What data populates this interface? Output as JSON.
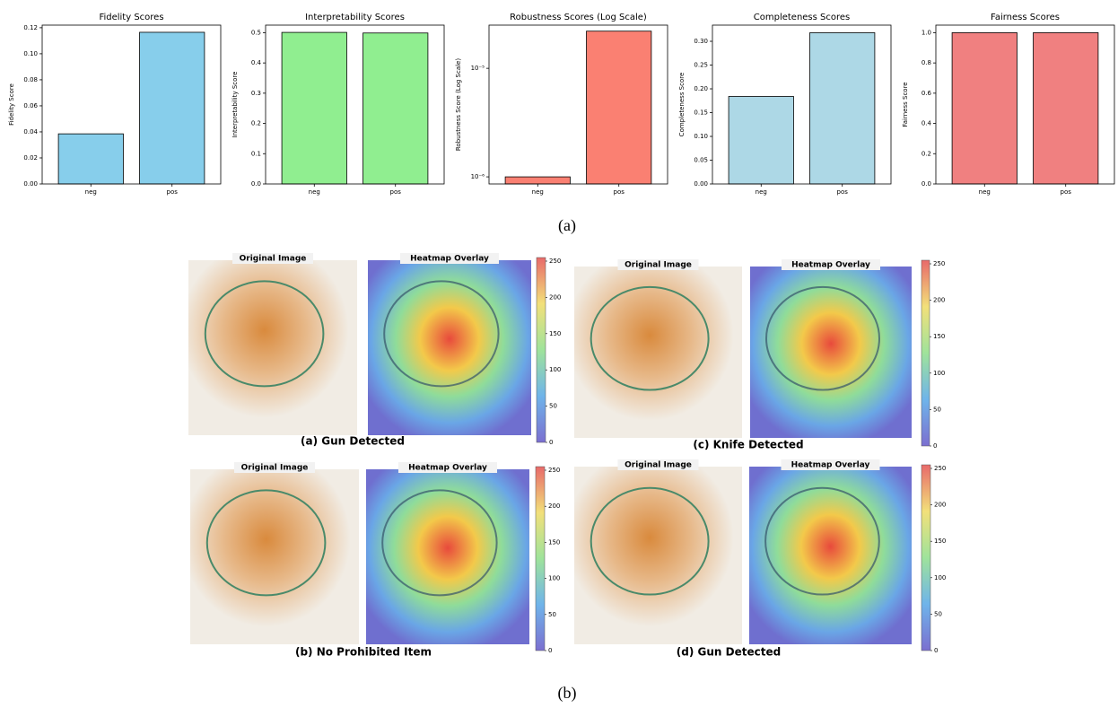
{
  "chart_data": [
    {
      "type": "bar",
      "title": "Fidelity Scores",
      "y_label": "Fidelity Score",
      "categories": [
        "neg",
        "pos"
      ],
      "values": [
        0.0385,
        0.1165
      ],
      "color": "#87ceeb",
      "ylim": [
        0,
        0.122
      ],
      "yticks": [
        {
          "value": 0,
          "label": "0.00"
        },
        {
          "value": 0.02,
          "label": "0.02"
        },
        {
          "value": 0.04,
          "label": "0.04"
        },
        {
          "value": 0.06,
          "label": "0.06"
        },
        {
          "value": 0.08,
          "label": "0.08"
        },
        {
          "value": 0.1,
          "label": "0.10"
        },
        {
          "value": 0.12,
          "label": "0.12"
        }
      ]
    },
    {
      "type": "bar",
      "title": "Interpretability Scores",
      "y_label": "Interpretability Score",
      "categories": [
        "neg",
        "pos"
      ],
      "values": [
        0.501,
        0.499
      ],
      "color": "#90ee90",
      "ylim": [
        0,
        0.525
      ],
      "yticks": [
        {
          "value": 0,
          "label": "0.0"
        },
        {
          "value": 0.1,
          "label": "0.1"
        },
        {
          "value": 0.2,
          "label": "0.2"
        },
        {
          "value": 0.3,
          "label": "0.3"
        },
        {
          "value": 0.4,
          "label": "0.4"
        },
        {
          "value": 0.5,
          "label": "0.5"
        }
      ]
    },
    {
      "type": "bar",
      "title": "Robustness Scores (Log Scale)",
      "y_label": "Robustness Score (Log Scale)",
      "categories": [
        "neg",
        "pos"
      ],
      "values": [
        1e-06,
        2.2e-05
      ],
      "color": "#fa8072",
      "log_scale": true,
      "ylim": [
        8.6e-07,
        2.5e-05
      ],
      "yticks": [
        {
          "value": 1e-06,
          "label": "10⁻⁶"
        },
        {
          "value": 1e-05,
          "label": "10⁻⁵"
        }
      ]
    },
    {
      "type": "bar",
      "title": "Completeness Scores",
      "y_label": "Completeness Score",
      "categories": [
        "neg",
        "pos"
      ],
      "values": [
        0.184,
        0.318
      ],
      "color": "#add8e6",
      "ylim": [
        0,
        0.334
      ],
      "yticks": [
        {
          "value": 0,
          "label": "0.00"
        },
        {
          "value": 0.05,
          "label": "0.05"
        },
        {
          "value": 0.1,
          "label": "0.10"
        },
        {
          "value": 0.15,
          "label": "0.15"
        },
        {
          "value": 0.2,
          "label": "0.20"
        },
        {
          "value": 0.25,
          "label": "0.25"
        },
        {
          "value": 0.3,
          "label": "0.30"
        }
      ]
    },
    {
      "type": "bar",
      "title": "Fairness Scores",
      "y_label": "Fairness Score",
      "categories": [
        "neg",
        "pos"
      ],
      "values": [
        1.0,
        1.0
      ],
      "color": "#f08080",
      "ylim": [
        0,
        1.05
      ],
      "yticks": [
        {
          "value": 0,
          "label": "0.0"
        },
        {
          "value": 0.2,
          "label": "0.2"
        },
        {
          "value": 0.4,
          "label": "0.4"
        },
        {
          "value": 0.6,
          "label": "0.6"
        },
        {
          "value": 0.8,
          "label": "0.8"
        },
        {
          "value": 1,
          "label": "1.0"
        }
      ]
    }
  ],
  "figure": {
    "caption_a": "(a)",
    "caption_b": "(b)",
    "panels": [
      {
        "original_title": "Original Image",
        "heatmap_title": "Heatmap Overlay",
        "caption": "(a) Gun Detected",
        "colorbar_ticks": [
          0,
          50,
          100,
          150,
          200,
          250
        ]
      },
      {
        "original_title": "Original Image",
        "heatmap_title": "Heatmap Overlay",
        "caption": "(c) Knife Detected",
        "colorbar_ticks": [
          0,
          50,
          100,
          150,
          200,
          250
        ]
      },
      {
        "original_title": "Original Image",
        "heatmap_title": "Heatmap Overlay",
        "caption": "(b) No Prohibited Item",
        "colorbar_ticks": [
          0,
          50,
          100,
          150,
          200,
          250
        ]
      },
      {
        "original_title": "Original Image",
        "heatmap_title": "Heatmap Overlay",
        "caption": "(d) Gun Detected",
        "colorbar_ticks": [
          0,
          50,
          100,
          150,
          200,
          250
        ]
      }
    ]
  }
}
